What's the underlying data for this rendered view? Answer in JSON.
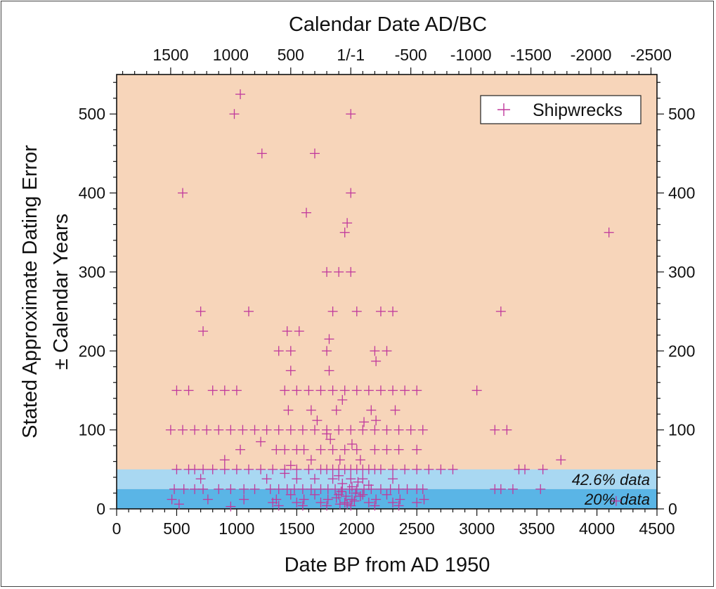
{
  "chart_data": {
    "type": "scatter",
    "title": "",
    "xlabel": "Date BP from AD 1950",
    "ylabel_line1": "Stated Approximate Dating Error",
    "ylabel_line2": "± Calendar Years",
    "top_axis_label": "Calendar Date AD/BC",
    "xlim": [
      0,
      4500
    ],
    "ylim": [
      0,
      550
    ],
    "x_ticks": [
      "0",
      "500",
      "1000",
      "1500",
      "2000",
      "2500",
      "3000",
      "3500",
      "4000",
      "4500"
    ],
    "y_ticks": [
      "0",
      "100",
      "200",
      "300",
      "400",
      "500"
    ],
    "top_ticks": [
      {
        "bp": 450,
        "label": "1500"
      },
      {
        "bp": 950,
        "label": "1000"
      },
      {
        "bp": 1450,
        "label": "500"
      },
      {
        "bp": 1950,
        "label": "1/-1"
      },
      {
        "bp": 2450,
        "label": "-500"
      },
      {
        "bp": 2950,
        "label": "-1000"
      },
      {
        "bp": 3450,
        "label": "-1500"
      },
      {
        "bp": 3950,
        "label": "-2000"
      },
      {
        "bp": 4450,
        "label": "-2500"
      }
    ],
    "legend": {
      "label": "Shipwrecks",
      "position": "top-right"
    },
    "bands": [
      {
        "from": 25,
        "to": 50,
        "label": "42.6% data",
        "color": "#a9d8f2"
      },
      {
        "from": 0,
        "to": 25,
        "label": "20% data",
        "color": "#5ab5e6"
      }
    ],
    "background_color": "#f7d5ba",
    "marker_color": "#c0399c",
    "series": [
      {
        "name": "Shipwrecks",
        "points": [
          [
            1030,
            525
          ],
          [
            980,
            500
          ],
          [
            1950,
            500
          ],
          [
            1210,
            450
          ],
          [
            1650,
            450
          ],
          [
            550,
            400
          ],
          [
            1950,
            400
          ],
          [
            1580,
            375
          ],
          [
            1920,
            362
          ],
          [
            1900,
            350
          ],
          [
            4100,
            350
          ],
          [
            1750,
            300
          ],
          [
            1850,
            300
          ],
          [
            1950,
            300
          ],
          [
            700,
            250
          ],
          [
            1100,
            250
          ],
          [
            1800,
            250
          ],
          [
            2000,
            250
          ],
          [
            2200,
            250
          ],
          [
            2300,
            250
          ],
          [
            3200,
            250
          ],
          [
            720,
            225
          ],
          [
            1420,
            225
          ],
          [
            1520,
            225
          ],
          [
            1770,
            215
          ],
          [
            1350,
            200
          ],
          [
            1450,
            200
          ],
          [
            1750,
            200
          ],
          [
            2150,
            200
          ],
          [
            2250,
            200
          ],
          [
            2160,
            187
          ],
          [
            1450,
            175
          ],
          [
            1770,
            175
          ],
          [
            500,
            150
          ],
          [
            600,
            150
          ],
          [
            800,
            150
          ],
          [
            900,
            150
          ],
          [
            1000,
            150
          ],
          [
            1400,
            150
          ],
          [
            1500,
            150
          ],
          [
            1600,
            150
          ],
          [
            1700,
            150
          ],
          [
            1800,
            150
          ],
          [
            1900,
            150
          ],
          [
            2000,
            150
          ],
          [
            2100,
            150
          ],
          [
            2200,
            150
          ],
          [
            2300,
            150
          ],
          [
            2400,
            150
          ],
          [
            2500,
            150
          ],
          [
            3000,
            150
          ],
          [
            1430,
            125
          ],
          [
            1620,
            125
          ],
          [
            1830,
            125
          ],
          [
            2120,
            125
          ],
          [
            2320,
            125
          ],
          [
            1670,
            112
          ],
          [
            2160,
            112
          ],
          [
            1200,
            85
          ],
          [
            1750,
            95
          ],
          [
            2060,
            110
          ],
          [
            1880,
            138
          ],
          [
            450,
            100
          ],
          [
            550,
            100
          ],
          [
            650,
            100
          ],
          [
            750,
            100
          ],
          [
            850,
            100
          ],
          [
            950,
            100
          ],
          [
            1050,
            100
          ],
          [
            1150,
            100
          ],
          [
            1250,
            100
          ],
          [
            1350,
            100
          ],
          [
            1450,
            100
          ],
          [
            1550,
            100
          ],
          [
            1650,
            100
          ],
          [
            1750,
            100
          ],
          [
            1850,
            100
          ],
          [
            1950,
            100
          ],
          [
            2050,
            100
          ],
          [
            2150,
            100
          ],
          [
            2250,
            100
          ],
          [
            2350,
            100
          ],
          [
            2450,
            100
          ],
          [
            2550,
            100
          ],
          [
            3150,
            100
          ],
          [
            3250,
            100
          ],
          [
            1030,
            75
          ],
          [
            1330,
            75
          ],
          [
            1400,
            75
          ],
          [
            1500,
            75
          ],
          [
            1560,
            75
          ],
          [
            1700,
            75
          ],
          [
            1800,
            75
          ],
          [
            1900,
            75
          ],
          [
            2000,
            75
          ],
          [
            2150,
            75
          ],
          [
            2250,
            75
          ],
          [
            2350,
            75
          ],
          [
            2500,
            75
          ],
          [
            900,
            62
          ],
          [
            1620,
            62
          ],
          [
            1860,
            62
          ],
          [
            2030,
            62
          ],
          [
            3700,
            62
          ],
          [
            1450,
            55
          ],
          [
            1960,
            82
          ],
          [
            1780,
            88
          ],
          [
            500,
            50
          ],
          [
            600,
            50
          ],
          [
            650,
            50
          ],
          [
            720,
            50
          ],
          [
            800,
            50
          ],
          [
            900,
            50
          ],
          [
            1000,
            50
          ],
          [
            1100,
            50
          ],
          [
            1200,
            50
          ],
          [
            1300,
            50
          ],
          [
            1400,
            50
          ],
          [
            1500,
            50
          ],
          [
            1600,
            50
          ],
          [
            1700,
            50
          ],
          [
            1750,
            50
          ],
          [
            1800,
            50
          ],
          [
            1850,
            50
          ],
          [
            1900,
            50
          ],
          [
            1950,
            50
          ],
          [
            2000,
            50
          ],
          [
            2050,
            50
          ],
          [
            2100,
            50
          ],
          [
            2150,
            50
          ],
          [
            2200,
            50
          ],
          [
            2300,
            50
          ],
          [
            2400,
            50
          ],
          [
            2500,
            50
          ],
          [
            2600,
            50
          ],
          [
            2700,
            50
          ],
          [
            2800,
            50
          ],
          [
            3350,
            50
          ],
          [
            3400,
            50
          ],
          [
            3550,
            50
          ],
          [
            700,
            38
          ],
          [
            1250,
            38
          ],
          [
            1500,
            38
          ],
          [
            1650,
            38
          ],
          [
            1800,
            38
          ],
          [
            1950,
            38
          ],
          [
            2050,
            38
          ],
          [
            2300,
            38
          ],
          [
            1400,
            45
          ],
          [
            1850,
            42
          ],
          [
            2100,
            30
          ],
          [
            480,
            25
          ],
          [
            560,
            25
          ],
          [
            650,
            25
          ],
          [
            720,
            25
          ],
          [
            850,
            25
          ],
          [
            950,
            25
          ],
          [
            1060,
            25
          ],
          [
            1150,
            25
          ],
          [
            1280,
            25
          ],
          [
            1350,
            25
          ],
          [
            1420,
            25
          ],
          [
            1480,
            25
          ],
          [
            1550,
            25
          ],
          [
            1620,
            25
          ],
          [
            1700,
            25
          ],
          [
            1760,
            25
          ],
          [
            1820,
            25
          ],
          [
            1880,
            25
          ],
          [
            1940,
            25
          ],
          [
            2000,
            25
          ],
          [
            2060,
            25
          ],
          [
            2120,
            25
          ],
          [
            2200,
            25
          ],
          [
            2280,
            25
          ],
          [
            2350,
            25
          ],
          [
            2420,
            25
          ],
          [
            2500,
            25
          ],
          [
            2550,
            25
          ],
          [
            3150,
            25
          ],
          [
            3200,
            25
          ],
          [
            3300,
            25
          ],
          [
            3530,
            25
          ],
          [
            460,
            12
          ],
          [
            760,
            12
          ],
          [
            1060,
            12
          ],
          [
            1330,
            12
          ],
          [
            1560,
            12
          ],
          [
            1760,
            12
          ],
          [
            1960,
            12
          ],
          [
            2160,
            12
          ],
          [
            2360,
            12
          ],
          [
            2560,
            12
          ],
          [
            1450,
            18
          ],
          [
            1650,
            18
          ],
          [
            1850,
            18
          ],
          [
            2050,
            18
          ],
          [
            2250,
            18
          ],
          [
            1300,
            8
          ],
          [
            1500,
            8
          ],
          [
            1700,
            8
          ],
          [
            1900,
            8
          ],
          [
            2100,
            8
          ],
          [
            2300,
            8
          ],
          [
            2500,
            8
          ],
          [
            1350,
            4
          ],
          [
            1550,
            4
          ],
          [
            1750,
            4
          ],
          [
            1950,
            4
          ],
          [
            2150,
            4
          ],
          [
            2350,
            4
          ],
          [
            520,
            6
          ],
          [
            950,
            3
          ],
          [
            4160,
            10
          ],
          [
            1830,
            14
          ],
          [
            1870,
            22
          ],
          [
            1910,
            16
          ],
          [
            1990,
            20
          ],
          [
            2030,
            16
          ],
          [
            1880,
            32
          ],
          [
            1960,
            28
          ],
          [
            2010,
            34
          ],
          [
            1920,
            6
          ],
          [
            1980,
            10
          ],
          [
            1860,
            6
          ]
        ]
      }
    ]
  }
}
